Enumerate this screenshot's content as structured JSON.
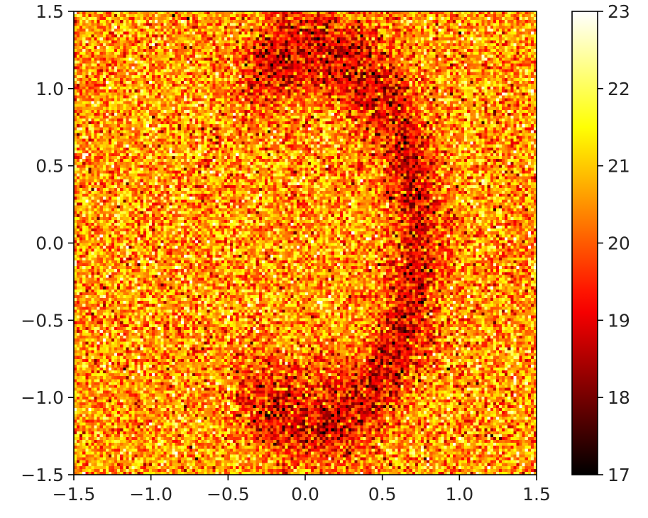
{
  "chart_data": {
    "type": "heatmap",
    "title": "",
    "xlabel": "",
    "ylabel": "",
    "xlim": [
      -1.5,
      1.5
    ],
    "ylim": [
      -1.5,
      1.5
    ],
    "x_ticks": [
      {
        "value": -1.5,
        "label": "−1.5"
      },
      {
        "value": -1.0,
        "label": "−1.0"
      },
      {
        "value": -0.5,
        "label": "−0.5"
      },
      {
        "value": 0.0,
        "label": "0.0"
      },
      {
        "value": 0.5,
        "label": "0.5"
      },
      {
        "value": 1.0,
        "label": "1.0"
      },
      {
        "value": 1.5,
        "label": "1.5"
      }
    ],
    "y_ticks": [
      {
        "value": -1.5,
        "label": "−1.5"
      },
      {
        "value": -1.0,
        "label": "−1.0"
      },
      {
        "value": -0.5,
        "label": "−0.5"
      },
      {
        "value": 0.0,
        "label": "0.0"
      },
      {
        "value": 0.5,
        "label": "0.5"
      },
      {
        "value": 1.0,
        "label": "1.0"
      },
      {
        "value": 1.5,
        "label": "1.5"
      }
    ],
    "colormap": "hot",
    "colorbar": {
      "range": [
        17,
        23
      ],
      "ticks": [
        {
          "value": 17,
          "label": "17"
        },
        {
          "value": 18,
          "label": "18"
        },
        {
          "value": 19,
          "label": "19"
        },
        {
          "value": 20,
          "label": "20"
        },
        {
          "value": 21,
          "label": "21"
        },
        {
          "value": 22,
          "label": "22"
        },
        {
          "value": 23,
          "label": "23"
        }
      ]
    },
    "field": {
      "grid_size": 160,
      "background_mean": 20.6,
      "noise_std": 0.9,
      "feature": "dark crescent / ring band (lower values) on noisy background",
      "feature_mean": 19.0,
      "ring_center": [
        0.05,
        0.05
      ],
      "ring_radius_x": 0.68,
      "ring_radius_y": 1.2,
      "ring_band_width": 0.38,
      "ring_gap_angle_center_deg": 180,
      "ring_gap_half_width_deg": 65
    }
  }
}
